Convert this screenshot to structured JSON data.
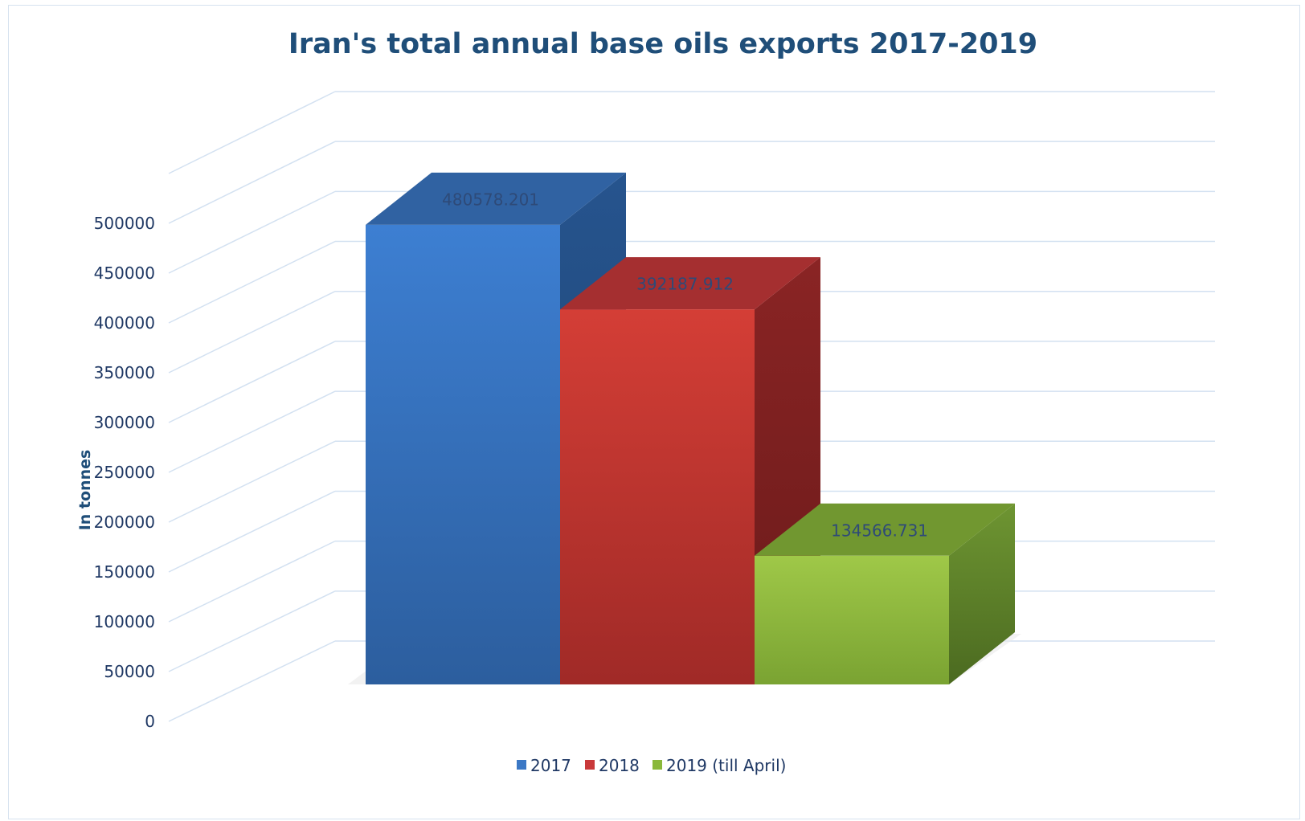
{
  "chart_data": {
    "type": "bar",
    "title": "Iran's total annual base oils exports 2017-2019",
    "ylabel": "In tonnes",
    "ylim": [
      0,
      500000
    ],
    "yticks": [
      "0",
      "50000",
      "100000",
      "150000",
      "200000",
      "250000",
      "300000",
      "350000",
      "400000",
      "450000",
      "500000"
    ],
    "categories": [
      "2017",
      "2018",
      "2019 (till April)"
    ],
    "values": [
      480578.201,
      392187.912,
      134566.731
    ],
    "value_labels": [
      "480578.201",
      "392187.912",
      "134566.731"
    ],
    "colors": [
      "#3b78c5",
      "#c9393a",
      "#8ab83a"
    ],
    "legend_position": "bottom",
    "grid": true
  }
}
